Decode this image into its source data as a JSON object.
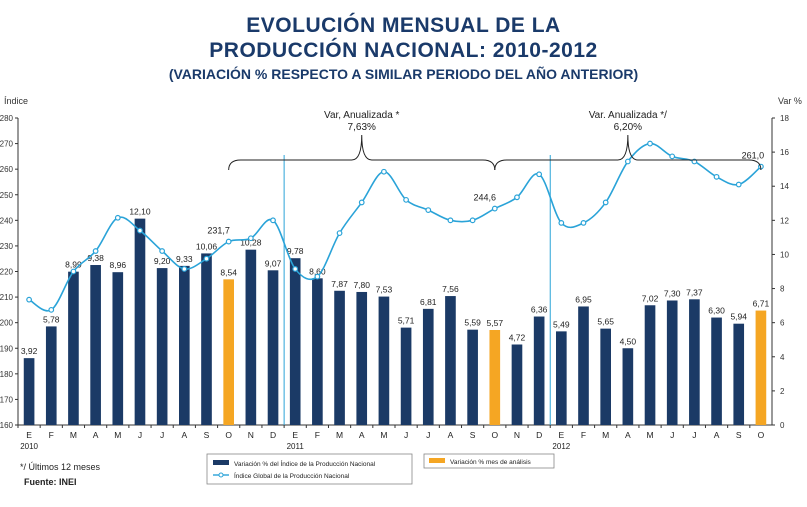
{
  "title_line1": "EVOLUCIÓN MENSUAL DE LA",
  "title_line2": "PRODUCCIÓN NACIONAL: 2010-2012",
  "title_line3": "(VARIACIÓN % RESPECTO A SIMILAR PERIODO DEL AÑO ANTERIOR)",
  "footnote": "*/ Últimos 12 meses",
  "source": "Fuente: INEI",
  "colors": {
    "bar": "#1b3a66",
    "bar_highlight": "#f5a623",
    "line": "#2aa3d8",
    "title": "#1a3a6a"
  },
  "chart_data": {
    "type": "bar+line",
    "ylabel_left": "Índice",
    "ylabel_right": "Var %",
    "ylim_left": [
      160,
      280
    ],
    "ylim_right": [
      0,
      18
    ],
    "yticks_left": [
      160,
      170,
      180,
      190,
      200,
      210,
      220,
      230,
      240,
      250,
      260,
      270,
      280
    ],
    "yticks_right": [
      0,
      2,
      4,
      6,
      8,
      10,
      12,
      14,
      16,
      18
    ],
    "categories": [
      "E",
      "F",
      "M",
      "A",
      "M",
      "J",
      "J",
      "A",
      "S",
      "O",
      "N",
      "D",
      "E",
      "F",
      "M",
      "A",
      "M",
      "J",
      "J",
      "A",
      "S",
      "O",
      "N",
      "D",
      "E",
      "F",
      "M",
      "A",
      "M",
      "J",
      "J",
      "A",
      "S",
      "O"
    ],
    "years": [
      {
        "label": "2010",
        "index": 0
      },
      {
        "label": "2011",
        "index": 12
      },
      {
        "label": "2012",
        "index": 24
      }
    ],
    "bar_series": {
      "name": "Variación % del Índice de la Producción Nacional",
      "values": [
        3.92,
        5.78,
        8.99,
        9.38,
        8.96,
        12.1,
        9.2,
        9.33,
        10.06,
        8.54,
        10.28,
        9.07,
        9.78,
        8.6,
        7.87,
        7.8,
        7.53,
        5.71,
        6.81,
        7.56,
        5.59,
        5.57,
        4.72,
        6.36,
        5.49,
        6.95,
        5.65,
        4.5,
        7.02,
        7.3,
        7.37,
        6.3,
        5.94,
        6.71
      ],
      "labels": [
        "3,92",
        "5,78",
        "8,99",
        "9,38",
        "8,96",
        "12,10",
        "9,20",
        "9,33",
        "10,06",
        "8,54",
        "10,28",
        "9,07",
        "9,78",
        "8,60",
        "7,87",
        "7,80",
        "7,53",
        "5,71",
        "6,81",
        "7,56",
        "5,59",
        "5,57",
        "4,72",
        "6,36",
        "5,49",
        "6,95",
        "5,65",
        "4,50",
        "7,02",
        "7,30",
        "7,37",
        "6,30",
        "5,94",
        "6,71"
      ],
      "highlight_indices": [
        9,
        21,
        33
      ]
    },
    "highlight_legend": "Variación % mes de análisis",
    "line_series": {
      "name": "Índice Global de la Producción Nacional",
      "values": [
        209,
        205,
        220,
        228,
        241,
        236,
        228,
        221,
        225,
        231.7,
        233,
        240,
        221,
        218,
        235,
        247,
        259,
        248,
        244,
        240,
        240,
        244.6,
        249,
        258,
        239,
        239,
        247,
        263,
        270,
        265,
        263,
        257,
        254,
        261.0
      ],
      "point_labels": [
        {
          "index": 9,
          "text": "231,7"
        },
        {
          "index": 21,
          "text": "244,6"
        },
        {
          "index": 33,
          "text": "261,0"
        }
      ]
    },
    "annotations": [
      {
        "line1": "Var, Anualizada *",
        "line2": "7,63%",
        "from": 9,
        "to": 21
      },
      {
        "line1": "Var. Anualizada */",
        "line2": "6,20%",
        "from": 21,
        "to": 33
      }
    ],
    "year_dividers": [
      11.5,
      23.5
    ]
  }
}
